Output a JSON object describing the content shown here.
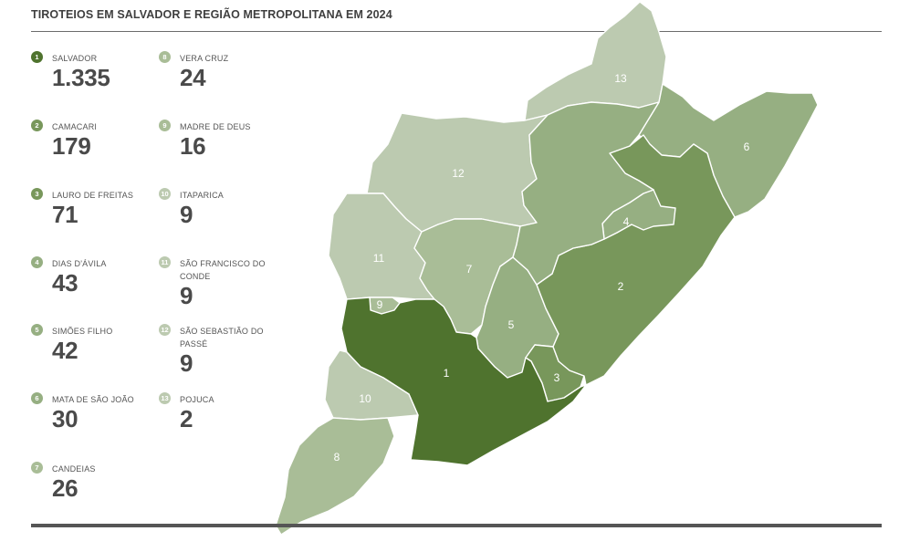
{
  "title": "TIROTEIOS EM SALVADOR E REGIÃO METROPOLITANA EM 2024",
  "colors": {
    "level_dark": "#4f732e",
    "level_mid_dark": "#78975b",
    "level_mid": "#96af82",
    "level_light": "#a9bd97",
    "level_lightest": "#bccab0"
  },
  "legend": [
    {
      "num": "1",
      "name": "SALVADOR",
      "value": "1.335",
      "color": "#4f732e"
    },
    {
      "num": "2",
      "name": "CAMACARI",
      "value": "179",
      "color": "#78975b"
    },
    {
      "num": "3",
      "name": "LAURO DE FREITAS",
      "value": "71",
      "color": "#78975b"
    },
    {
      "num": "4",
      "name": "DIAS D'ÁVILA",
      "value": "43",
      "color": "#96af82"
    },
    {
      "num": "5",
      "name": "SIMÕES FILHO",
      "value": "42",
      "color": "#96af82"
    },
    {
      "num": "6",
      "name": "MATA DE SÃO JOÃO",
      "value": "30",
      "color": "#96af82"
    },
    {
      "num": "7",
      "name": "CANDEIAS",
      "value": "26",
      "color": "#a9bd97"
    },
    {
      "num": "8",
      "name": "VERA CRUZ",
      "value": "24",
      "color": "#a9bd97"
    },
    {
      "num": "9",
      "name": "MADRE DE DEUS",
      "value": "16",
      "color": "#a9bd97"
    },
    {
      "num": "10",
      "name": "ITAPARICA",
      "value": "9",
      "color": "#bccab0"
    },
    {
      "num": "11",
      "name": "SÃO FRANCISCO DO CONDE",
      "value": "9",
      "color": "#bccab0"
    },
    {
      "num": "12",
      "name": "SÃO SEBASTIÃO DO PASSÉ",
      "value": "9",
      "color": "#bccab0"
    },
    {
      "num": "13",
      "name": "POJUCA",
      "value": "2",
      "color": "#bccab0"
    }
  ],
  "map_labels": {
    "r1": "1",
    "r2": "2",
    "r3": "3",
    "r4": "4",
    "r5": "5",
    "r6": "6",
    "r7": "7",
    "r8": "8",
    "r9": "9",
    "r10": "10",
    "r11": "11",
    "r12": "12",
    "r13": "13"
  }
}
